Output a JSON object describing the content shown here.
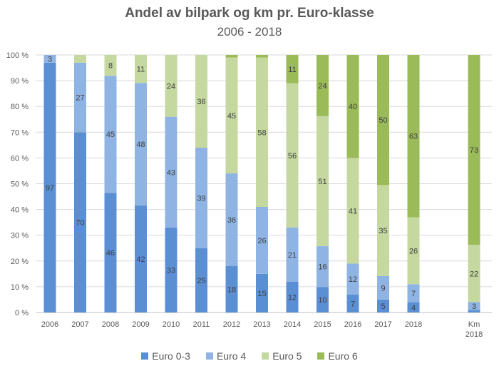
{
  "chart_data": {
    "type": "bar",
    "stacked": "percent",
    "title": "Andel av bilpark og km pr. Euro-klasse",
    "subtitle": "2006 - 2018",
    "categories": [
      "2006",
      "2007",
      "2008",
      "2009",
      "2010",
      "2011",
      "2012",
      "2013",
      "2014",
      "2015",
      "2016",
      "2017",
      "2018",
      "Km 2018"
    ],
    "yticks": [
      "0 %",
      "10 %",
      "20 %",
      "30 %",
      "40 %",
      "50 %",
      "60 %",
      "70 %",
      "80 %",
      "90 %",
      "100 %"
    ],
    "ylim": [
      0,
      100
    ],
    "grid": true,
    "legend": "bottom",
    "series": [
      {
        "name": "Euro 0-3",
        "color": "#5b8fd4",
        "values": [
          97,
          70,
          46,
          42,
          33,
          25,
          18,
          15,
          12,
          10,
          7,
          5,
          4,
          1
        ],
        "labels": [
          "97",
          "70",
          "46",
          "42",
          "33",
          "25",
          "18",
          "15",
          "12",
          "10",
          "7",
          "5",
          "4",
          null
        ]
      },
      {
        "name": "Euro 4",
        "color": "#8fb4e3",
        "values": [
          3,
          27,
          45,
          48,
          43,
          39,
          36,
          26,
          21,
          16,
          12,
          9,
          7,
          3
        ],
        "labels": [
          "3",
          "27",
          "45",
          "48",
          "43",
          "39",
          "36",
          "26",
          "21",
          "16",
          "12",
          "9",
          "7",
          "3"
        ]
      },
      {
        "name": "Euro 5",
        "color": "#c4d89f",
        "values": [
          0,
          3,
          8,
          11,
          24,
          36,
          45,
          58,
          56,
          51,
          41,
          35,
          26,
          22
        ],
        "labels": [
          null,
          null,
          "8",
          "11",
          "24",
          "36",
          "45",
          "58",
          "56",
          "51",
          "41",
          "35",
          "26",
          "22"
        ]
      },
      {
        "name": "Euro 6",
        "color": "#9bbb59",
        "values": [
          0,
          0,
          0,
          0,
          0,
          0,
          1,
          1,
          11,
          24,
          40,
          50,
          63,
          73
        ],
        "labels": [
          null,
          null,
          null,
          null,
          null,
          null,
          null,
          null,
          "11",
          "24",
          "40",
          "50",
          "63",
          "73"
        ]
      }
    ]
  }
}
